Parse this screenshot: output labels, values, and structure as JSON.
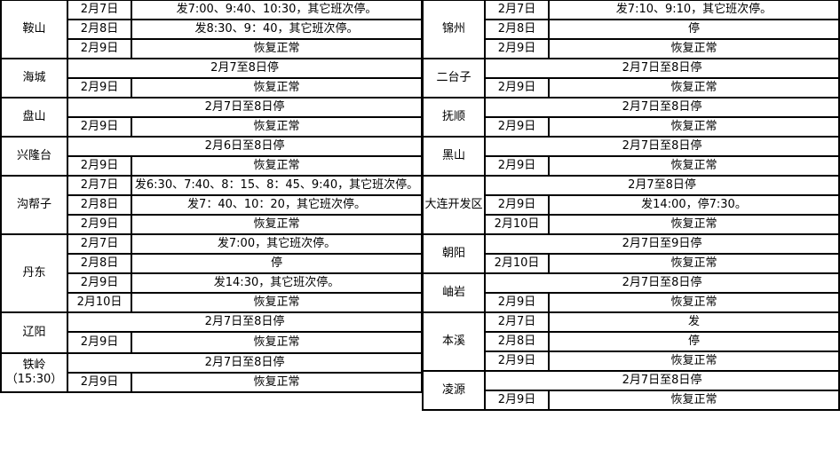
{
  "left": [
    {
      "city": "鞍山",
      "rows": [
        {
          "date": "2月7日",
          "text": "发7:00、9:40、10:30，其它班次停。"
        },
        {
          "date": "2月8日",
          "text": "发8:30、9：40，其它班次停。"
        },
        {
          "date": "2月9日",
          "text": "恢复正常"
        }
      ]
    },
    {
      "city": "海城",
      "rows": [
        {
          "date": "",
          "text": "2月7至8日停"
        },
        {
          "date": "2月9日",
          "text": "恢复正常"
        }
      ]
    },
    {
      "city": "盘山",
      "rows": [
        {
          "date": "",
          "text": "2月7日至8日停"
        },
        {
          "date": "2月9日",
          "text": "恢复正常"
        }
      ]
    },
    {
      "city": "兴隆台",
      "rows": [
        {
          "date": "",
          "text": "2月6日至8日停"
        },
        {
          "date": "2月9日",
          "text": "恢复正常"
        }
      ]
    },
    {
      "city": "沟帮子",
      "rows": [
        {
          "date": "2月7日",
          "text": "发6:30、7:40、8：15、8：45、9:40，其它班次停。"
        },
        {
          "date": "2月8日",
          "text": "发7：40、10：20，其它班次停。"
        },
        {
          "date": "2月9日",
          "text": "恢复正常"
        }
      ]
    },
    {
      "city": "丹东",
      "rows": [
        {
          "date": "2月7日",
          "text": "发7:00，其它班次停。"
        },
        {
          "date": "2月8日",
          "text": "停"
        },
        {
          "date": "2月9日",
          "text": "发14:30，其它班次停。"
        },
        {
          "date": "2月10日",
          "text": "恢复正常"
        }
      ]
    },
    {
      "city": "辽阳",
      "rows": [
        {
          "date": "",
          "text": "2月7日至8日停"
        },
        {
          "date": "2月9日",
          "text": "恢复正常"
        }
      ]
    },
    {
      "city": "铁岭（15:30）",
      "rows": [
        {
          "date": "",
          "text": "2月7日至8日停"
        },
        {
          "date": "2月9日",
          "text": "恢复正常"
        }
      ]
    }
  ],
  "right": [
    {
      "city": "锦州",
      "rows": [
        {
          "date": "2月7日",
          "text": "发7:10、9:10，其它班次停。"
        },
        {
          "date": "2月8日",
          "text": "停"
        },
        {
          "date": "2月9日",
          "text": "恢复正常"
        }
      ]
    },
    {
      "city": "二台子",
      "rows": [
        {
          "date": "",
          "text": "2月7日至8日停"
        },
        {
          "date": "2月9日",
          "text": "恢复正常"
        }
      ]
    },
    {
      "city": "抚顺",
      "rows": [
        {
          "date": "",
          "text": "2月7日至8日停"
        },
        {
          "date": "2月9日",
          "text": "恢复正常"
        }
      ]
    },
    {
      "city": "黑山",
      "rows": [
        {
          "date": "",
          "text": "2月7日至8日停"
        },
        {
          "date": "2月9日",
          "text": "恢复正常"
        }
      ]
    },
    {
      "city": "大连开发区",
      "rows": [
        {
          "date": "",
          "text": "2月7至8日停"
        },
        {
          "date": "2月9日",
          "text": "发14:00，停7:30。"
        },
        {
          "date": "2月10日",
          "text": "恢复正常"
        }
      ]
    },
    {
      "city": "朝阳",
      "rows": [
        {
          "date": "",
          "text": "2月7日至9日停"
        },
        {
          "date": "2月10日",
          "text": "恢复正常"
        }
      ]
    },
    {
      "city": "岫岩",
      "rows": [
        {
          "date": "",
          "text": "2月7日至8日停"
        },
        {
          "date": "2月9日",
          "text": "恢复正常"
        }
      ]
    },
    {
      "city": "本溪",
      "rows": [
        {
          "date": "2月7日",
          "text": "发"
        },
        {
          "date": "2月8日",
          "text": "停"
        },
        {
          "date": "2月9日",
          "text": "恢复正常"
        }
      ]
    },
    {
      "city": "凌源",
      "rows": [
        {
          "date": "",
          "text": "2月7日至8日停"
        },
        {
          "date": "2月9日",
          "text": "恢复正常"
        }
      ]
    }
  ]
}
